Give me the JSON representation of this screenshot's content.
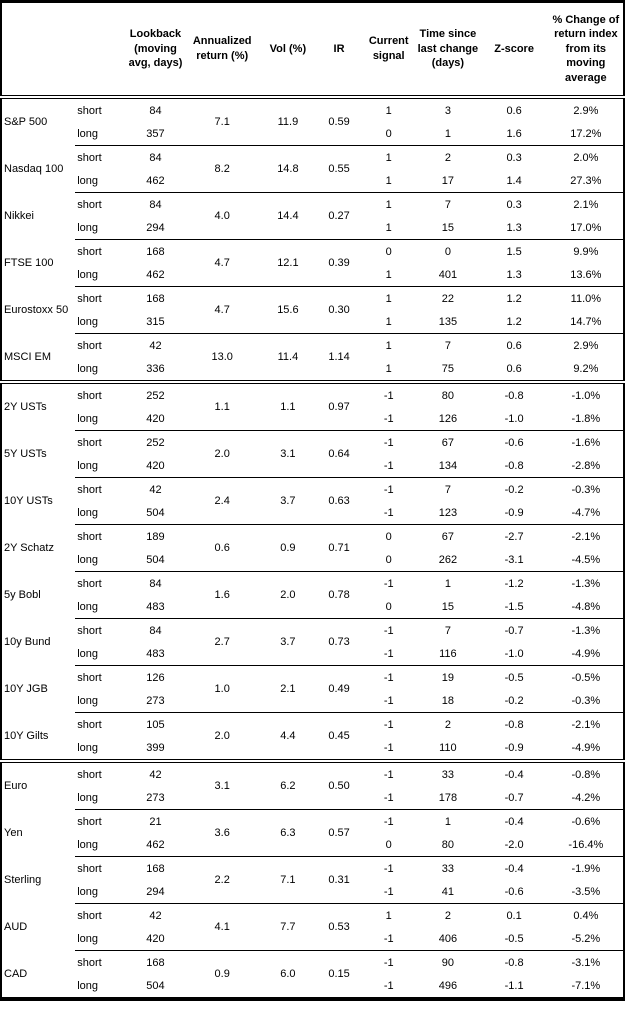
{
  "table": {
    "headers": {
      "asset": "",
      "horizon": "",
      "lookback": "Lookback (moving avg, days)",
      "annualized_return": "Annualized return (%)",
      "vol": "Vol (%)",
      "ir": "IR",
      "current_signal": "Current signal",
      "time_since": "Time since last change (days)",
      "zscore": "Z-score",
      "pct_change": "% Change of return index from its moving average"
    },
    "sections": [
      {
        "assets": [
          {
            "name": "S&P 500",
            "annualized_return": "7.1",
            "vol": "11.9",
            "ir": "0.59",
            "rows": [
              {
                "horizon": "short",
                "lookback": "84",
                "signal": "1",
                "time_since": "3",
                "zscore": "0.6",
                "pct_change": "2.9%"
              },
              {
                "horizon": "long",
                "lookback": "357",
                "signal": "0",
                "time_since": "1",
                "zscore": "1.6",
                "pct_change": "17.2%"
              }
            ]
          },
          {
            "name": "Nasdaq 100",
            "annualized_return": "8.2",
            "vol": "14.8",
            "ir": "0.55",
            "rows": [
              {
                "horizon": "short",
                "lookback": "84",
                "signal": "1",
                "time_since": "2",
                "zscore": "0.3",
                "pct_change": "2.0%"
              },
              {
                "horizon": "long",
                "lookback": "462",
                "signal": "1",
                "time_since": "17",
                "zscore": "1.4",
                "pct_change": "27.3%"
              }
            ]
          },
          {
            "name": "Nikkei",
            "annualized_return": "4.0",
            "vol": "14.4",
            "ir": "0.27",
            "rows": [
              {
                "horizon": "short",
                "lookback": "84",
                "signal": "1",
                "time_since": "7",
                "zscore": "0.3",
                "pct_change": "2.1%"
              },
              {
                "horizon": "long",
                "lookback": "294",
                "signal": "1",
                "time_since": "15",
                "zscore": "1.3",
                "pct_change": "17.0%"
              }
            ]
          },
          {
            "name": "FTSE 100",
            "annualized_return": "4.7",
            "vol": "12.1",
            "ir": "0.39",
            "rows": [
              {
                "horizon": "short",
                "lookback": "168",
                "signal": "0",
                "time_since": "0",
                "zscore": "1.5",
                "pct_change": "9.9%"
              },
              {
                "horizon": "long",
                "lookback": "462",
                "signal": "1",
                "time_since": "401",
                "zscore": "1.3",
                "pct_change": "13.6%"
              }
            ]
          },
          {
            "name": "Eurostoxx 50",
            "annualized_return": "4.7",
            "vol": "15.6",
            "ir": "0.30",
            "rows": [
              {
                "horizon": "short",
                "lookback": "168",
                "signal": "1",
                "time_since": "22",
                "zscore": "1.2",
                "pct_change": "11.0%"
              },
              {
                "horizon": "long",
                "lookback": "315",
                "signal": "1",
                "time_since": "135",
                "zscore": "1.2",
                "pct_change": "14.7%"
              }
            ]
          },
          {
            "name": "MSCI EM",
            "annualized_return": "13.0",
            "vol": "11.4",
            "ir": "1.14",
            "rows": [
              {
                "horizon": "short",
                "lookback": "42",
                "signal": "1",
                "time_since": "7",
                "zscore": "0.6",
                "pct_change": "2.9%"
              },
              {
                "horizon": "long",
                "lookback": "336",
                "signal": "1",
                "time_since": "75",
                "zscore": "0.6",
                "pct_change": "9.2%"
              }
            ]
          }
        ]
      },
      {
        "assets": [
          {
            "name": "2Y USTs",
            "annualized_return": "1.1",
            "vol": "1.1",
            "ir": "0.97",
            "rows": [
              {
                "horizon": "short",
                "lookback": "252",
                "signal": "-1",
                "time_since": "80",
                "zscore": "-0.8",
                "pct_change": "-1.0%"
              },
              {
                "horizon": "long",
                "lookback": "420",
                "signal": "-1",
                "time_since": "126",
                "zscore": "-1.0",
                "pct_change": "-1.8%"
              }
            ]
          },
          {
            "name": "5Y USTs",
            "annualized_return": "2.0",
            "vol": "3.1",
            "ir": "0.64",
            "rows": [
              {
                "horizon": "short",
                "lookback": "252",
                "signal": "-1",
                "time_since": "67",
                "zscore": "-0.6",
                "pct_change": "-1.6%"
              },
              {
                "horizon": "long",
                "lookback": "420",
                "signal": "-1",
                "time_since": "134",
                "zscore": "-0.8",
                "pct_change": "-2.8%"
              }
            ]
          },
          {
            "name": "10Y USTs",
            "annualized_return": "2.4",
            "vol": "3.7",
            "ir": "0.63",
            "rows": [
              {
                "horizon": "short",
                "lookback": "42",
                "signal": "-1",
                "time_since": "7",
                "zscore": "-0.2",
                "pct_change": "-0.3%"
              },
              {
                "horizon": "long",
                "lookback": "504",
                "signal": "-1",
                "time_since": "123",
                "zscore": "-0.9",
                "pct_change": "-4.7%"
              }
            ]
          },
          {
            "name": "2Y Schatz",
            "annualized_return": "0.6",
            "vol": "0.9",
            "ir": "0.71",
            "rows": [
              {
                "horizon": "short",
                "lookback": "189",
                "signal": "0",
                "time_since": "67",
                "zscore": "-2.7",
                "pct_change": "-2.1%"
              },
              {
                "horizon": "long",
                "lookback": "504",
                "signal": "0",
                "time_since": "262",
                "zscore": "-3.1",
                "pct_change": "-4.5%"
              }
            ]
          },
          {
            "name": "5y Bobl",
            "annualized_return": "1.6",
            "vol": "2.0",
            "ir": "0.78",
            "rows": [
              {
                "horizon": "short",
                "lookback": "84",
                "signal": "-1",
                "time_since": "1",
                "zscore": "-1.2",
                "pct_change": "-1.3%"
              },
              {
                "horizon": "long",
                "lookback": "483",
                "signal": "0",
                "time_since": "15",
                "zscore": "-1.5",
                "pct_change": "-4.8%"
              }
            ]
          },
          {
            "name": "10y Bund",
            "annualized_return": "2.7",
            "vol": "3.7",
            "ir": "0.73",
            "rows": [
              {
                "horizon": "short",
                "lookback": "84",
                "signal": "-1",
                "time_since": "7",
                "zscore": "-0.7",
                "pct_change": "-1.3%"
              },
              {
                "horizon": "long",
                "lookback": "483",
                "signal": "-1",
                "time_since": "116",
                "zscore": "-1.0",
                "pct_change": "-4.9%"
              }
            ]
          },
          {
            "name": "10Y JGB",
            "annualized_return": "1.0",
            "vol": "2.1",
            "ir": "0.49",
            "rows": [
              {
                "horizon": "short",
                "lookback": "126",
                "signal": "-1",
                "time_since": "19",
                "zscore": "-0.5",
                "pct_change": "-0.5%"
              },
              {
                "horizon": "long",
                "lookback": "273",
                "signal": "-1",
                "time_since": "18",
                "zscore": "-0.2",
                "pct_change": "-0.3%"
              }
            ]
          },
          {
            "name": "10Y Gilts",
            "annualized_return": "2.0",
            "vol": "4.4",
            "ir": "0.45",
            "rows": [
              {
                "horizon": "short",
                "lookback": "105",
                "signal": "-1",
                "time_since": "2",
                "zscore": "-0.8",
                "pct_change": "-2.1%"
              },
              {
                "horizon": "long",
                "lookback": "399",
                "signal": "-1",
                "time_since": "110",
                "zscore": "-0.9",
                "pct_change": "-4.9%"
              }
            ]
          }
        ]
      },
      {
        "assets": [
          {
            "name": "Euro",
            "annualized_return": "3.1",
            "vol": "6.2",
            "ir": "0.50",
            "rows": [
              {
                "horizon": "short",
                "lookback": "42",
                "signal": "-1",
                "time_since": "33",
                "zscore": "-0.4",
                "pct_change": "-0.8%"
              },
              {
                "horizon": "long",
                "lookback": "273",
                "signal": "-1",
                "time_since": "178",
                "zscore": "-0.7",
                "pct_change": "-4.2%"
              }
            ]
          },
          {
            "name": "Yen",
            "annualized_return": "3.6",
            "vol": "6.3",
            "ir": "0.57",
            "rows": [
              {
                "horizon": "short",
                "lookback": "21",
                "signal": "-1",
                "time_since": "1",
                "zscore": "-0.4",
                "pct_change": "-0.6%"
              },
              {
                "horizon": "long",
                "lookback": "462",
                "signal": "0",
                "time_since": "80",
                "zscore": "-2.0",
                "pct_change": "-16.4%"
              }
            ]
          },
          {
            "name": "Sterling",
            "annualized_return": "2.2",
            "vol": "7.1",
            "ir": "0.31",
            "rows": [
              {
                "horizon": "short",
                "lookback": "168",
                "signal": "-1",
                "time_since": "33",
                "zscore": "-0.4",
                "pct_change": "-1.9%"
              },
              {
                "horizon": "long",
                "lookback": "294",
                "signal": "-1",
                "time_since": "41",
                "zscore": "-0.6",
                "pct_change": "-3.5%"
              }
            ]
          },
          {
            "name": "AUD",
            "annualized_return": "4.1",
            "vol": "7.7",
            "ir": "0.53",
            "rows": [
              {
                "horizon": "short",
                "lookback": "42",
                "signal": "1",
                "time_since": "2",
                "zscore": "0.1",
                "pct_change": "0.4%"
              },
              {
                "horizon": "long",
                "lookback": "420",
                "signal": "-1",
                "time_since": "406",
                "zscore": "-0.5",
                "pct_change": "-5.2%"
              }
            ]
          },
          {
            "name": "CAD",
            "annualized_return": "0.9",
            "vol": "6.0",
            "ir": "0.15",
            "rows": [
              {
                "horizon": "short",
                "lookback": "168",
                "signal": "-1",
                "time_since": "90",
                "zscore": "-0.8",
                "pct_change": "-3.1%"
              },
              {
                "horizon": "long",
                "lookback": "504",
                "signal": "-1",
                "time_since": "496",
                "zscore": "-1.1",
                "pct_change": "-7.1%"
              }
            ]
          }
        ]
      }
    ]
  }
}
